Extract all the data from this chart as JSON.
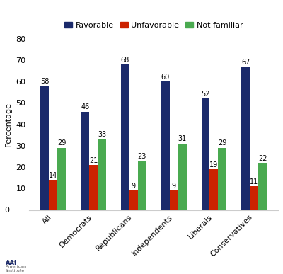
{
  "categories": [
    "All",
    "Democrats",
    "Republicans",
    "Independents",
    "Liberals",
    "Conservatives"
  ],
  "series": [
    {
      "label": "Favorable",
      "color": "#1b2a6b",
      "values": [
        58,
        46,
        68,
        60,
        52,
        67
      ]
    },
    {
      "label": "Unfavorable",
      "color": "#cc2200",
      "values": [
        14,
        21,
        9,
        9,
        19,
        11
      ]
    },
    {
      "label": "Not familiar",
      "color": "#4aaa50",
      "values": [
        29,
        33,
        23,
        31,
        29,
        22
      ]
    }
  ],
  "ylabel": "Percentage",
  "ylim": [
    0,
    80
  ],
  "yticks": [
    0,
    10,
    20,
    30,
    40,
    50,
    60,
    70,
    80
  ],
  "background_color": "#ffffff",
  "bar_width": 0.21,
  "label_fontsize": 7,
  "axis_fontsize": 8,
  "legend_fontsize": 8,
  "ylabel_fontsize": 8
}
